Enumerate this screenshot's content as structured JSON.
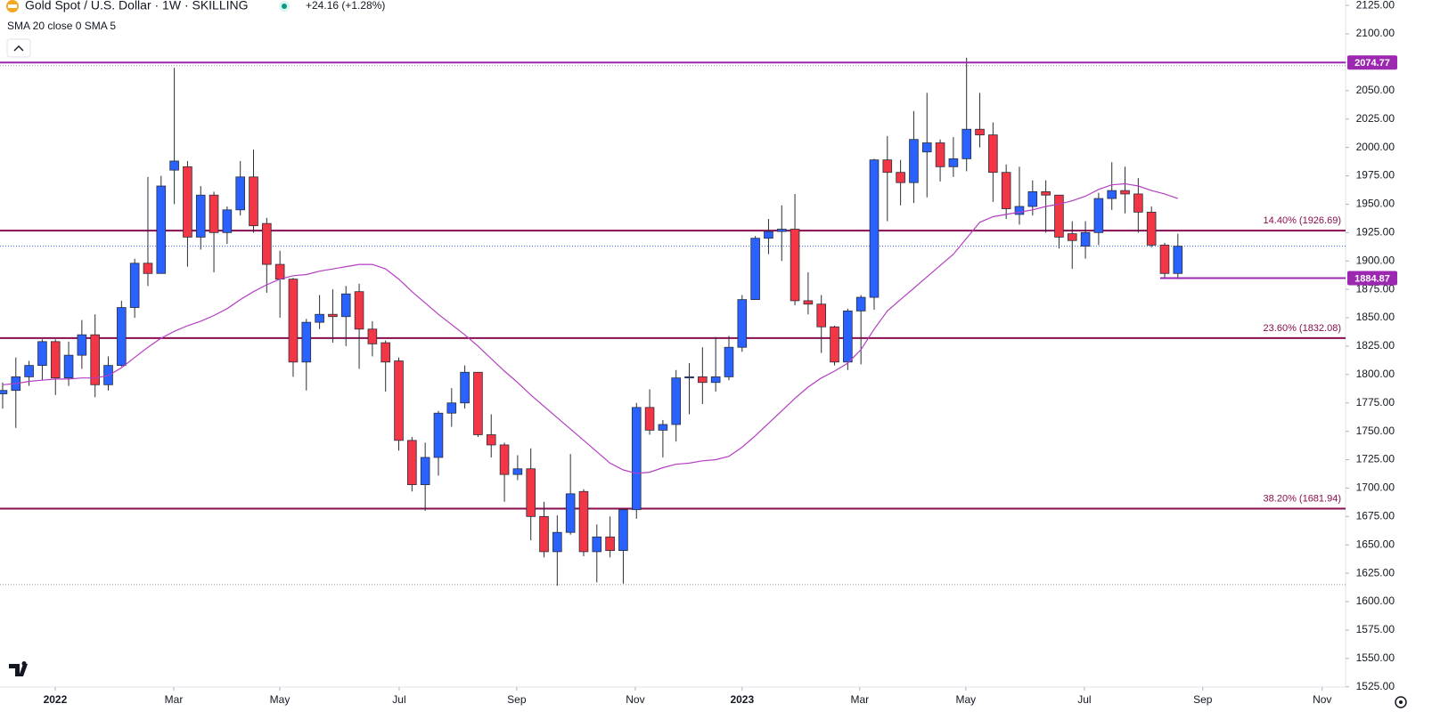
{
  "chart_data": {
    "type": "candlestick",
    "title": "Gold Spot / U.S. Dollar · 1W · SKILLING",
    "change": "+24.16 (+1.28%)",
    "indicator": "SMA 20 close 0 SMA 5",
    "up_color": "#2962ff",
    "down_color": "#f23645",
    "wick_color": "#2a2e39",
    "open": [
      1783,
      1786,
      1798,
      1808,
      1829,
      1797,
      1817,
      1835,
      1791,
      1808,
      1859,
      1898,
      1889,
      1980,
      1983,
      1921,
      1958,
      1925,
      1945,
      1974,
      1933,
      1897,
      1884,
      1811,
      1846,
      1853,
      1851,
      1873,
      1840,
      1828,
      1812,
      1742,
      1703,
      1727,
      1766,
      1775,
      1802,
      1747,
      1738,
      1712,
      1717,
      1675,
      1644,
      1661,
      1697,
      1644,
      1657,
      1645,
      1681,
      1771,
      1751,
      1756,
      1797,
      1798,
      1793,
      1798,
      1824,
      1866,
      1920,
      1926,
      1928,
      1865,
      1862,
      1842,
      1811,
      1856,
      1868,
      1989,
      1978,
      1969,
      1996,
      2004,
      1983,
      1990,
      2016,
      2011,
      1978,
      1941,
      1948,
      1961,
      1958,
      1924,
      1913,
      1925,
      1955,
      1962,
      1959,
      1943,
      1914,
      1889
    ],
    "high": [
      1793,
      1815,
      1812,
      1831,
      1831,
      1829,
      1848,
      1853,
      1816,
      1865,
      1902,
      1974,
      1975,
      2070,
      1988,
      1966,
      1961,
      1948,
      1988,
      1998,
      1938,
      1909,
      1885,
      1849,
      1870,
      1875,
      1878,
      1880,
      1847,
      1830,
      1815,
      1745,
      1740,
      1768,
      1788,
      1808,
      1802,
      1765,
      1740,
      1729,
      1735,
      1688,
      1676,
      1730,
      1699,
      1668,
      1675,
      1682,
      1775,
      1787,
      1760,
      1804,
      1810,
      1824,
      1833,
      1834,
      1870,
      1922,
      1937,
      1949,
      1959,
      1890,
      1870,
      1843,
      1858,
      1870,
      1990,
      2010,
      1989,
      2032,
      2048,
      2007,
      2009,
      2079,
      2048,
      2022,
      1985,
      1983,
      1971,
      1971,
      1958,
      1935,
      1935,
      1960,
      1987,
      1983,
      1973,
      1948,
      1916,
      1924
    ],
    "low": [
      1770,
      1753,
      1790,
      1795,
      1782,
      1790,
      1805,
      1780,
      1786,
      1807,
      1850,
      1878,
      1889,
      1950,
      1895,
      1910,
      1890,
      1915,
      1940,
      1925,
      1872,
      1850,
      1798,
      1786,
      1840,
      1828,
      1825,
      1805,
      1816,
      1785,
      1733,
      1697,
      1680,
      1711,
      1754,
      1770,
      1745,
      1727,
      1688,
      1707,
      1654,
      1639,
      1614,
      1659,
      1640,
      1617,
      1639,
      1616,
      1673,
      1747,
      1727,
      1741,
      1765,
      1774,
      1785,
      1795,
      1820,
      1866,
      1906,
      1900,
      1861,
      1853,
      1819,
      1808,
      1804,
      1809,
      1857,
      1935,
      1949,
      1951,
      1956,
      1970,
      1974,
      1979,
      2000,
      1952,
      1937,
      1932,
      1940,
      1925,
      1911,
      1893,
      1902,
      1914,
      1945,
      1942,
      1925,
      1912,
      1885,
      1884
    ],
    "close": [
      1786,
      1798,
      1808,
      1829,
      1797,
      1817,
      1835,
      1791,
      1808,
      1859,
      1898,
      1889,
      1966,
      1988,
      1921,
      1958,
      1925,
      1945,
      1974,
      1931,
      1897,
      1884,
      1811,
      1846,
      1853,
      1851,
      1871,
      1840,
      1827,
      1811,
      1742,
      1703,
      1727,
      1766,
      1775,
      1802,
      1747,
      1738,
      1712,
      1717,
      1675,
      1644,
      1661,
      1695,
      1644,
      1657,
      1645,
      1681,
      1771,
      1751,
      1756,
      1797,
      1798,
      1793,
      1798,
      1824,
      1866,
      1920,
      1926,
      1928,
      1865,
      1862,
      1842,
      1811,
      1856,
      1868,
      1989,
      1978,
      1969,
      2007,
      2004,
      1983,
      1990,
      2016,
      2011,
      1978,
      1946,
      1948,
      1961,
      1958,
      1921,
      1918,
      1925,
      1955,
      1962,
      1959,
      1943,
      1914,
      1889,
      1913
    ],
    "sma_color": "#b43ec1",
    "sma_values": [
      1791,
      1792,
      1794,
      1795,
      1796,
      1796,
      1797,
      1797,
      1799,
      1806,
      1815,
      1824,
      1832,
      1838,
      1843,
      1847,
      1852,
      1858,
      1866,
      1873,
      1879,
      1884,
      1887,
      1888,
      1891,
      1893,
      1895,
      1897,
      1897,
      1893,
      1884,
      1873,
      1863,
      1853,
      1844,
      1835,
      1825,
      1814,
      1803,
      1793,
      1782,
      1772,
      1762,
      1752,
      1742,
      1732,
      1722,
      1716,
      1713,
      1714,
      1718,
      1721,
      1722,
      1724,
      1725,
      1728,
      1736,
      1746,
      1757,
      1768,
      1779,
      1789,
      1797,
      1803,
      1810,
      1822,
      1840,
      1856,
      1866,
      1876,
      1886,
      1896,
      1906,
      1920,
      1934,
      1939,
      1941,
      1943,
      1945,
      1948,
      1950,
      1953,
      1957,
      1963,
      1967,
      1968,
      1966,
      1962,
      1959,
      1955
    ],
    "fib_color": "#880e4f",
    "fib_levels": [
      {
        "value": 1926.69,
        "label": "14.40% (1926.69)"
      },
      {
        "value": 1832.08,
        "label": "23.60% (1832.08)"
      },
      {
        "value": 1681.94,
        "label": "38.20% (1681.94)"
      }
    ],
    "price_lines": [
      {
        "value": 2074.77,
        "color": "#9c27b0"
      },
      {
        "value": 1884.87,
        "color": "#9c27b0"
      }
    ],
    "dotted_lines": [
      {
        "value": 2072,
        "color": "#9598a1"
      },
      {
        "value": 1913,
        "color": "#2962ff"
      },
      {
        "value": 1615,
        "color": "#9598a1"
      }
    ],
    "xlim": [
      -0.2,
      101.7
    ],
    "xticks": [
      {
        "value": 3.98,
        "label": "2022"
      },
      {
        "value": 12.96,
        "label": "Mar"
      },
      {
        "value": 20.99,
        "label": "May"
      },
      {
        "value": 30.03,
        "label": "Jul"
      },
      {
        "value": 38.93,
        "label": "Sep"
      },
      {
        "value": 47.91,
        "label": "Nov"
      },
      {
        "value": 56.0,
        "label": "2023"
      },
      {
        "value": 64.91,
        "label": "Mar"
      },
      {
        "value": 72.94,
        "label": "May"
      },
      {
        "value": 81.92,
        "label": "Jul"
      },
      {
        "value": 90.89,
        "label": "Sep"
      },
      {
        "value": 99.93,
        "label": "Nov"
      }
    ],
    "ylim": [
      1524.8,
      2129.8
    ],
    "yticks": [
      {
        "value": 2125,
        "label": "2125.00"
      },
      {
        "value": 2100,
        "label": "2100.00"
      },
      {
        "value": 2075,
        "label": "2075.00"
      },
      {
        "value": 2050,
        "label": "2050.00"
      },
      {
        "value": 2025,
        "label": "2025.00"
      },
      {
        "value": 2000,
        "label": "2000.00"
      },
      {
        "value": 1975,
        "label": "1975.00"
      },
      {
        "value": 1950,
        "label": "1950.00"
      },
      {
        "value": 1925,
        "label": "1925.00"
      },
      {
        "value": 1900,
        "label": "1900.00"
      },
      {
        "value": 1875,
        "label": "1875.00"
      },
      {
        "value": 1850,
        "label": "1850.00"
      },
      {
        "value": 1825,
        "label": "1825.00"
      },
      {
        "value": 1800,
        "label": "1800.00"
      },
      {
        "value": 1775,
        "label": "1775.00"
      },
      {
        "value": 1750,
        "label": "1750.00"
      },
      {
        "value": 1725,
        "label": "1725.00"
      },
      {
        "value": 1700,
        "label": "1700.00"
      },
      {
        "value": 1675,
        "label": "1675.00"
      },
      {
        "value": 1650,
        "label": "1650.00"
      },
      {
        "value": 1625,
        "label": "1625.00"
      },
      {
        "value": 1600,
        "label": "1600.00"
      },
      {
        "value": 1575,
        "label": "1575.00"
      },
      {
        "value": 1550,
        "label": "1550.00"
      },
      {
        "value": 1525,
        "label": "1525.00"
      }
    ]
  }
}
